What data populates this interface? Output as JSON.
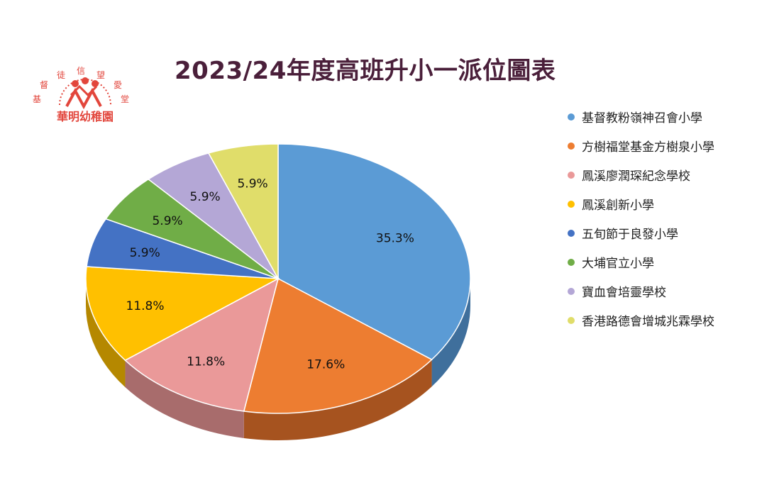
{
  "logo": {
    "arc_text": [
      "基",
      "督",
      "徒",
      "信",
      "望",
      "愛",
      "堂"
    ],
    "name": "華明幼稚園",
    "color": "#e2463c"
  },
  "chart_data": {
    "type": "pie",
    "title": "2023/24年度高班升小一派位圖表",
    "legend_position": "right",
    "slices": [
      {
        "name": "基督教粉嶺神召會小學",
        "value": 35.3,
        "label": "35.3%",
        "color": "#5b9bd5",
        "side": "#3f6f9c"
      },
      {
        "name": "方樹福堂基金方樹泉小學",
        "value": 17.6,
        "label": "17.6%",
        "color": "#ed7d31",
        "side": "#a6531f"
      },
      {
        "name": "鳳溪廖潤琛紀念學校",
        "value": 11.8,
        "label": "11.8%",
        "color": "#ea9999",
        "side": "#a86c6c"
      },
      {
        "name": "鳳溪創新小學",
        "value": 11.8,
        "label": "11.8%",
        "color": "#ffc000",
        "side": "#b58800"
      },
      {
        "name": "五旬節于良發小學",
        "value": 5.9,
        "label": "5.9%",
        "color": "#4472c4",
        "side": "#2f4f8a"
      },
      {
        "name": "大埔官立小學",
        "value": 5.9,
        "label": "5.9%",
        "color": "#70ad47",
        "side": "#4e7a32"
      },
      {
        "name": "寶血會培靈學校",
        "value": 5.9,
        "label": "5.9%",
        "color": "#b4a7d6",
        "side": "#7e7596"
      },
      {
        "name": "香港路德會增城兆霖學校",
        "value": 5.9,
        "label": "5.9%",
        "color": "#e0dd6a",
        "side": "#9d9b4a"
      }
    ]
  }
}
